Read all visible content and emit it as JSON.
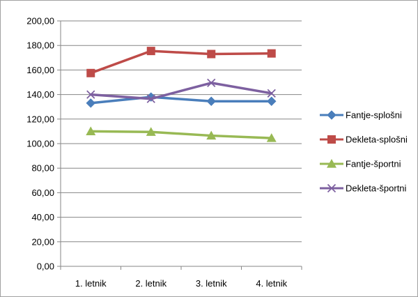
{
  "chart_data": {
    "type": "line",
    "categories": [
      "1. letnik",
      "2. letnik",
      "3. letnik",
      "4. letnik"
    ],
    "ylim": [
      0,
      200
    ],
    "ytick_step": 20,
    "ytick_labels": [
      "0,00",
      "20,00",
      "40,00",
      "60,00",
      "80,00",
      "100,00",
      "120,00",
      "140,00",
      "160,00",
      "180,00",
      "200,00"
    ],
    "grid": true,
    "legend_position": "right",
    "title": "",
    "xlabel": "",
    "ylabel": "",
    "series": [
      {
        "name": "Fantje-splošni",
        "color": "#4a7ebb",
        "marker": "diamond",
        "values": [
          133,
          138,
          134.5,
          134.5
        ]
      },
      {
        "name": "Dekleta-splošni",
        "color": "#be4b48",
        "marker": "square",
        "values": [
          157.5,
          175.5,
          173,
          173.5
        ]
      },
      {
        "name": "Fantje-športni",
        "color": "#98b954",
        "marker": "triangle",
        "values": [
          110,
          109.5,
          106.5,
          104.5
        ]
      },
      {
        "name": "Dekleta-športni",
        "color": "#7d60a0",
        "marker": "x",
        "values": [
          140,
          136.5,
          149.5,
          141
        ]
      }
    ]
  }
}
